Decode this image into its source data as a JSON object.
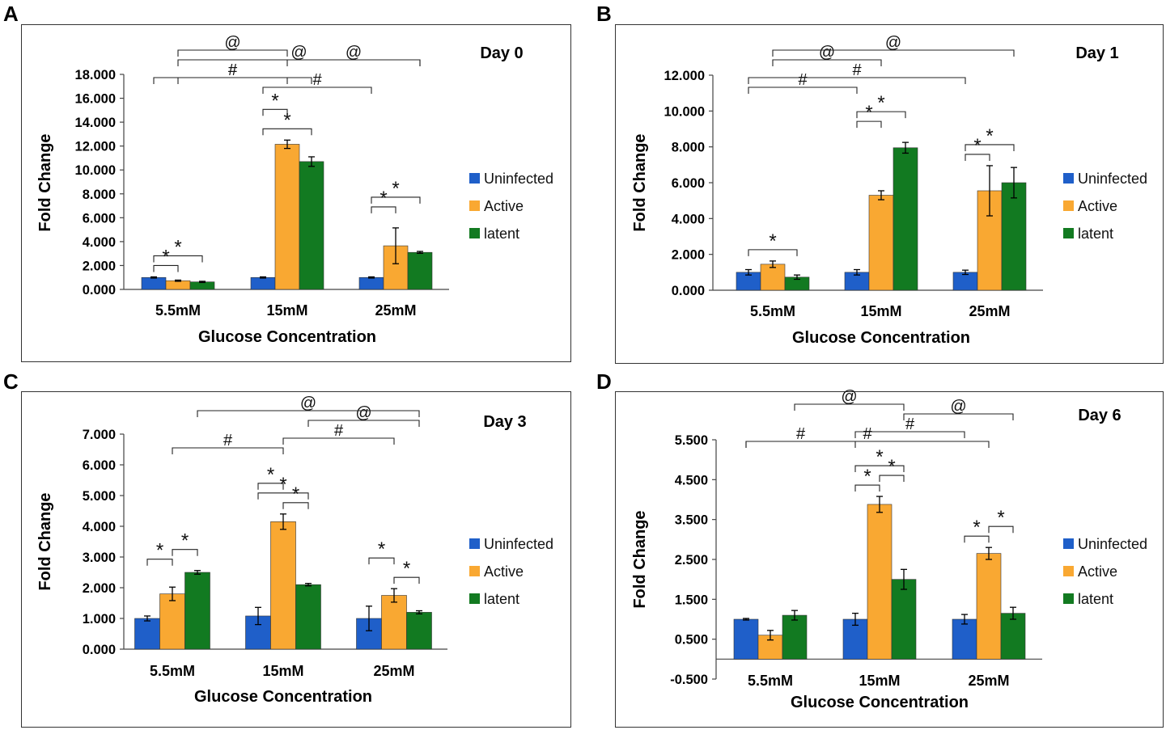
{
  "colors": {
    "Uninfected": "#1f5fc9",
    "Active": "#f9a832",
    "latent": "#127a21"
  },
  "chart_data": [
    {
      "panel": "A",
      "title": "Day 0",
      "type": "bar",
      "categories": [
        "5.5mM",
        "15mM",
        "25mM"
      ],
      "series": [
        {
          "name": "Uninfected",
          "values": [
            1.0,
            1.0,
            1.0
          ],
          "errors": [
            0.05,
            0.05,
            0.05
          ]
        },
        {
          "name": "Active",
          "values": [
            0.73,
            12.15,
            3.65
          ],
          "errors": [
            0.05,
            0.35,
            1.5
          ]
        },
        {
          "name": "latent",
          "values": [
            0.63,
            10.7,
            3.1
          ],
          "errors": [
            0.05,
            0.4,
            0.08
          ]
        }
      ],
      "ylim": [
        0,
        18
      ],
      "yticks": [
        "0.000",
        "2.000",
        "4.000",
        "6.000",
        "8.000",
        "10.000",
        "12.000",
        "14.000",
        "16.000",
        "18.000"
      ],
      "xlabel": "Glucose Concentration",
      "ylabel": "Fold Change",
      "annotations": [
        {
          "text": "*",
          "from": [
            0,
            0
          ],
          "to": [
            0,
            1
          ]
        },
        {
          "text": "*",
          "from": [
            0,
            0
          ],
          "to": [
            0,
            2
          ]
        },
        {
          "text": "*",
          "from": [
            1,
            0
          ],
          "to": [
            1,
            1
          ]
        },
        {
          "text": "*",
          "from": [
            1,
            0
          ],
          "to": [
            1,
            2
          ]
        },
        {
          "text": "*",
          "from": [
            2,
            0
          ],
          "to": [
            2,
            1
          ]
        },
        {
          "text": "*",
          "from": [
            2,
            0
          ],
          "to": [
            2,
            2
          ]
        },
        {
          "text": "#",
          "from": [
            0,
            0
          ],
          "to": [
            1,
            2
          ]
        },
        {
          "text": "#",
          "from": [
            1,
            0
          ],
          "to": [
            2,
            0
          ]
        },
        {
          "text": "#",
          "from": [
            0,
            1
          ],
          "to": [
            1,
            1
          ]
        },
        {
          "text": "@",
          "from": [
            0,
            1
          ],
          "to": [
            2,
            2
          ]
        },
        {
          "text": "@",
          "from": [
            0,
            1
          ],
          "to": [
            1,
            1
          ]
        },
        {
          "text": "@",
          "from": [
            1,
            1
          ],
          "to": [
            2,
            2
          ]
        }
      ]
    },
    {
      "panel": "B",
      "title": "Day 1",
      "type": "bar",
      "categories": [
        "5.5mM",
        "15mM",
        "25mM"
      ],
      "series": [
        {
          "name": "Uninfected",
          "values": [
            1.0,
            1.0,
            1.0
          ],
          "errors": [
            0.15,
            0.15,
            0.12
          ]
        },
        {
          "name": "Active",
          "values": [
            1.45,
            5.3,
            5.55
          ],
          "errors": [
            0.18,
            0.25,
            1.4
          ]
        },
        {
          "name": "latent",
          "values": [
            0.73,
            7.95,
            6.0
          ],
          "errors": [
            0.12,
            0.3,
            0.85
          ]
        }
      ],
      "ylim": [
        0,
        12
      ],
      "yticks": [
        "0.000",
        "2.000",
        "4.000",
        "6.000",
        "8.000",
        "10.000",
        "12.000"
      ],
      "xlabel": "Glucose Concentration",
      "ylabel": "Fold Change",
      "annotations": [
        {
          "text": "*",
          "from": [
            0,
            0
          ],
          "to": [
            0,
            2
          ]
        },
        {
          "text": "*",
          "from": [
            1,
            0
          ],
          "to": [
            1,
            1
          ]
        },
        {
          "text": "*",
          "from": [
            1,
            0
          ],
          "to": [
            1,
            2
          ]
        },
        {
          "text": "*",
          "from": [
            2,
            0
          ],
          "to": [
            2,
            1
          ]
        },
        {
          "text": "*",
          "from": [
            2,
            0
          ],
          "to": [
            2,
            2
          ]
        },
        {
          "text": "#",
          "from": [
            0,
            0
          ],
          "to": [
            1,
            0
          ]
        },
        {
          "text": "#",
          "from": [
            0,
            0
          ],
          "to": [
            2,
            0
          ]
        },
        {
          "text": "@",
          "from": [
            0,
            1
          ],
          "to": [
            1,
            1
          ]
        },
        {
          "text": "@",
          "from": [
            0,
            1
          ],
          "to": [
            2,
            2
          ]
        }
      ]
    },
    {
      "panel": "C",
      "title": "Day 3",
      "type": "bar",
      "categories": [
        "5.5mM",
        "15mM",
        "25mM"
      ],
      "series": [
        {
          "name": "Uninfected",
          "values": [
            1.0,
            1.08,
            1.0
          ],
          "errors": [
            0.08,
            0.28,
            0.4
          ]
        },
        {
          "name": "Active",
          "values": [
            1.8,
            4.15,
            1.75
          ],
          "errors": [
            0.22,
            0.25,
            0.22
          ]
        },
        {
          "name": "latent",
          "values": [
            2.5,
            2.1,
            1.2
          ],
          "errors": [
            0.06,
            0.04,
            0.05
          ]
        }
      ],
      "ylim": [
        0,
        7
      ],
      "yticks": [
        "0.000",
        "1.000",
        "2.000",
        "3.000",
        "4.000",
        "5.000",
        "6.000",
        "7.000"
      ],
      "xlabel": "Glucose Concentration",
      "ylabel": "Fold Change",
      "annotations": [
        {
          "text": "*",
          "from": [
            0,
            0
          ],
          "to": [
            0,
            1
          ]
        },
        {
          "text": "*",
          "from": [
            0,
            1
          ],
          "to": [
            0,
            2
          ]
        },
        {
          "text": "*",
          "from": [
            1,
            0
          ],
          "to": [
            1,
            1
          ]
        },
        {
          "text": "*",
          "from": [
            1,
            1
          ],
          "to": [
            1,
            2
          ]
        },
        {
          "text": "*",
          "from": [
            1,
            0
          ],
          "to": [
            1,
            2
          ]
        },
        {
          "text": "*",
          "from": [
            2,
            0
          ],
          "to": [
            2,
            1
          ]
        },
        {
          "text": "*",
          "from": [
            2,
            1
          ],
          "to": [
            2,
            2
          ]
        },
        {
          "text": "#",
          "from": [
            0,
            1
          ],
          "to": [
            1,
            1
          ]
        },
        {
          "text": "#",
          "from": [
            1,
            1
          ],
          "to": [
            2,
            1
          ]
        },
        {
          "text": "@",
          "from": [
            1,
            2
          ],
          "to": [
            2,
            2
          ]
        },
        {
          "text": "@",
          "from": [
            0,
            2
          ],
          "to": [
            2,
            2
          ]
        }
      ]
    },
    {
      "panel": "D",
      "title": "Day 6",
      "type": "bar",
      "categories": [
        "5.5mM",
        "15mM",
        "25mM"
      ],
      "series": [
        {
          "name": "Uninfected",
          "values": [
            1.0,
            1.0,
            1.0
          ],
          "errors": [
            0.02,
            0.15,
            0.12
          ]
        },
        {
          "name": "Active",
          "values": [
            0.6,
            3.88,
            2.65
          ],
          "errors": [
            0.12,
            0.2,
            0.15
          ]
        },
        {
          "name": "latent",
          "values": [
            1.1,
            2.0,
            1.15
          ],
          "errors": [
            0.12,
            0.25,
            0.15
          ]
        }
      ],
      "ylim": [
        -0.5,
        5.5
      ],
      "yticks": [
        "-0.500",
        "0.500",
        "1.500",
        "2.500",
        "3.500",
        "4.500",
        "5.500"
      ],
      "xlabel": "Glucose Concentration",
      "ylabel": "Fold Change",
      "annotations": [
        {
          "text": "*",
          "from": [
            1,
            0
          ],
          "to": [
            1,
            1
          ]
        },
        {
          "text": "*",
          "from": [
            1,
            1
          ],
          "to": [
            1,
            2
          ]
        },
        {
          "text": "*",
          "from": [
            1,
            0
          ],
          "to": [
            1,
            2
          ]
        },
        {
          "text": "*",
          "from": [
            2,
            0
          ],
          "to": [
            2,
            1
          ]
        },
        {
          "text": "*",
          "from": [
            2,
            1
          ],
          "to": [
            2,
            2
          ]
        },
        {
          "text": "#",
          "from": [
            0,
            0
          ],
          "to": [
            1,
            0
          ]
        },
        {
          "text": "#",
          "from": [
            1,
            0
          ],
          "to": [
            2,
            0
          ]
        },
        {
          "text": "#",
          "from": [
            0,
            0
          ],
          "to": [
            2,
            1
          ]
        },
        {
          "text": "@",
          "from": [
            0,
            2
          ],
          "to": [
            1,
            2
          ]
        },
        {
          "text": "@",
          "from": [
            1,
            2
          ],
          "to": [
            2,
            2
          ]
        }
      ]
    }
  ]
}
